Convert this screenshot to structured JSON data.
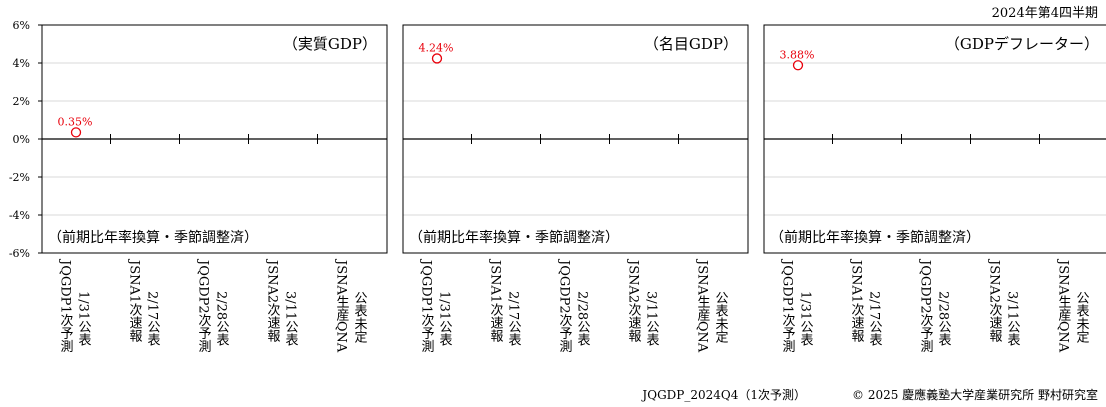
{
  "corner_label": "2024年第4四半期",
  "footer": {
    "model": "JQGDP_2024Q4（1次予測）",
    "copyright": "© 2025 慶應義塾大学産業研究所 野村研究室"
  },
  "colors": {
    "marker": "#e8000b",
    "axis": "#000000",
    "grid": "#d9d9d9"
  },
  "chart_data": {
    "type": "scatter",
    "ylim": [
      -6,
      6
    ],
    "yticks": [
      "6%",
      "4%",
      "2%",
      "0%",
      "-2%",
      "-4%",
      "-6%"
    ],
    "ytick_values": [
      6,
      4,
      2,
      0,
      -2,
      -4,
      -6
    ],
    "grid": true,
    "categories": [
      {
        "line1": "1/31公表",
        "line2": "JQGDP1次予測"
      },
      {
        "line1": "2/17公表",
        "line2": "JSNA1次速報"
      },
      {
        "line1": "2/28公表",
        "line2": "JQGDP2次予測"
      },
      {
        "line1": "3/11公表",
        "line2": "JSNA2次速報"
      },
      {
        "line1": "公表未定",
        "line2": "JSNA生産QNA"
      }
    ],
    "panels": [
      {
        "title": "（実質GDP）",
        "note": "（前期比年率換算・季節調整済）",
        "points": [
          {
            "category_index": 0,
            "value": 0.35,
            "label": "0.35%"
          }
        ]
      },
      {
        "title": "（名目GDP）",
        "note": "（前期比年率換算・季節調整済）",
        "points": [
          {
            "category_index": 0,
            "value": 4.24,
            "label": "4.24%"
          }
        ]
      },
      {
        "title": "（GDPデフレーター）",
        "note": "（前期比年率換算・季節調整済）",
        "points": [
          {
            "category_index": 0,
            "value": 3.88,
            "label": "3.88%"
          }
        ]
      }
    ]
  }
}
